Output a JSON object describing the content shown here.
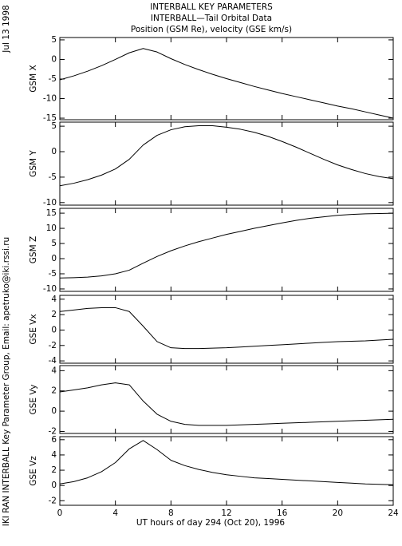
{
  "page": {
    "title_lines": [
      "INTERBALL KEY PARAMETERS",
      "INTERBALL—Tail Orbital Data",
      "Position (GSM Re), velocity (GSE km/s)"
    ],
    "date": "Jul 13 1998",
    "credit": "IKI RAN INTERBALL Key Parameter Group, Email: apetruko@iki.rssi.ru"
  },
  "chart_data": [
    {
      "type": "line",
      "ylabel": "GSM X",
      "xlim": [
        0,
        24
      ],
      "ylim": [
        -15.4,
        5.6
      ],
      "yticks": [
        5,
        0,
        -5,
        -10,
        -15
      ],
      "x": [
        0,
        1,
        2,
        3,
        4,
        5,
        6,
        7,
        8,
        9,
        10,
        11,
        12,
        13,
        14,
        15,
        16,
        17,
        18,
        19,
        20,
        21,
        22,
        23,
        24
      ],
      "series": [
        {
          "color": "#000000",
          "values": [
            -5.2,
            -4.2,
            -3,
            -1.6,
            0,
            1.7,
            2.8,
            1.9,
            0.2,
            -1.3,
            -2.6,
            -3.8,
            -4.9,
            -5.9,
            -6.9,
            -7.8,
            -8.7,
            -9.5,
            -10.3,
            -11.1,
            -11.9,
            -12.6,
            -13.4,
            -14.2,
            -15.0
          ]
        }
      ]
    },
    {
      "type": "line",
      "ylabel": "GSM Y",
      "xlim": [
        0,
        24
      ],
      "ylim": [
        -10.5,
        5.8
      ],
      "yticks": [
        5,
        0,
        -5,
        -10
      ],
      "x": [
        0,
        1,
        2,
        3,
        4,
        5,
        6,
        7,
        8,
        9,
        10,
        11,
        12,
        13,
        14,
        15,
        16,
        17,
        18,
        19,
        20,
        21,
        22,
        23,
        24
      ],
      "series": [
        {
          "color": "#000000",
          "values": [
            -6.7,
            -6.2,
            -5.5,
            -4.6,
            -3.4,
            -1.5,
            1.3,
            3.2,
            4.3,
            4.9,
            5.1,
            5.1,
            4.8,
            4.4,
            3.8,
            3.0,
            2.0,
            0.9,
            -0.3,
            -1.5,
            -2.6,
            -3.5,
            -4.3,
            -4.9,
            -5.3
          ]
        }
      ]
    },
    {
      "type": "line",
      "ylabel": "GSM Z",
      "xlim": [
        0,
        24
      ],
      "ylim": [
        -10.8,
        16.6
      ],
      "yticks": [
        15,
        10,
        5,
        0,
        -5,
        -10
      ],
      "x": [
        0,
        1,
        2,
        3,
        4,
        5,
        6,
        7,
        8,
        9,
        10,
        11,
        12,
        13,
        14,
        15,
        16,
        17,
        18,
        19,
        20,
        21,
        22,
        23,
        24
      ],
      "series": [
        {
          "color": "#000000",
          "values": [
            -6.4,
            -6.3,
            -6.1,
            -5.7,
            -5.0,
            -3.8,
            -1.5,
            0.7,
            2.6,
            4.2,
            5.6,
            6.8,
            8.0,
            9.0,
            10.0,
            10.9,
            11.8,
            12.6,
            13.3,
            13.8,
            14.3,
            14.6,
            14.8,
            14.9,
            15.0
          ]
        }
      ]
    },
    {
      "type": "line",
      "ylabel": "GSE Vx",
      "xlim": [
        0,
        24
      ],
      "ylim": [
        -4.3,
        4.5
      ],
      "yticks": [
        4,
        2,
        0,
        -2,
        -4
      ],
      "x": [
        0,
        1,
        2,
        3,
        4,
        5,
        6,
        7,
        8,
        9,
        10,
        11,
        12,
        13,
        14,
        15,
        16,
        17,
        18,
        19,
        20,
        21,
        22,
        23,
        24
      ],
      "series": [
        {
          "color": "#000000",
          "values": [
            2.4,
            2.6,
            2.8,
            2.9,
            2.9,
            2.4,
            0.5,
            -1.5,
            -2.3,
            -2.4,
            -2.4,
            -2.35,
            -2.3,
            -2.2,
            -2.1,
            -2.0,
            -1.9,
            -1.8,
            -1.7,
            -1.6,
            -1.5,
            -1.45,
            -1.4,
            -1.3,
            -1.2
          ]
        }
      ]
    },
    {
      "type": "line",
      "ylabel": "GSE Vy",
      "xlim": [
        0,
        24
      ],
      "ylim": [
        -2.2,
        4.5
      ],
      "yticks": [
        4,
        2,
        0,
        -2
      ],
      "x": [
        0,
        1,
        2,
        3,
        4,
        5,
        6,
        7,
        8,
        9,
        10,
        11,
        12,
        13,
        14,
        15,
        16,
        17,
        18,
        19,
        20,
        21,
        22,
        23,
        24
      ],
      "series": [
        {
          "color": "#000000",
          "values": [
            1.9,
            2.1,
            2.3,
            2.6,
            2.8,
            2.6,
            1.0,
            -0.3,
            -1.0,
            -1.3,
            -1.4,
            -1.4,
            -1.4,
            -1.35,
            -1.3,
            -1.25,
            -1.2,
            -1.15,
            -1.1,
            -1.05,
            -1.0,
            -0.95,
            -0.9,
            -0.85,
            -0.8
          ]
        }
      ]
    },
    {
      "type": "line",
      "ylabel": "GSE Vz",
      "xlim": [
        0,
        24
      ],
      "ylim": [
        -2.6,
        6.4
      ],
      "yticks": [
        6,
        4,
        2,
        0,
        -2
      ],
      "xticks": [
        0,
        4,
        8,
        12,
        16,
        20,
        24
      ],
      "xlabel": "UT hours of day 294 (Oct 20), 1996",
      "x": [
        0,
        1,
        2,
        3,
        4,
        5,
        6,
        7,
        8,
        9,
        10,
        11,
        12,
        13,
        14,
        15,
        16,
        17,
        18,
        19,
        20,
        21,
        22,
        23,
        24
      ],
      "series": [
        {
          "color": "#000000",
          "values": [
            0.2,
            0.5,
            1.0,
            1.8,
            3.0,
            4.8,
            5.9,
            4.7,
            3.3,
            2.6,
            2.1,
            1.7,
            1.4,
            1.2,
            1.0,
            0.9,
            0.8,
            0.7,
            0.6,
            0.5,
            0.4,
            0.3,
            0.2,
            0.15,
            0.1
          ]
        }
      ]
    }
  ]
}
